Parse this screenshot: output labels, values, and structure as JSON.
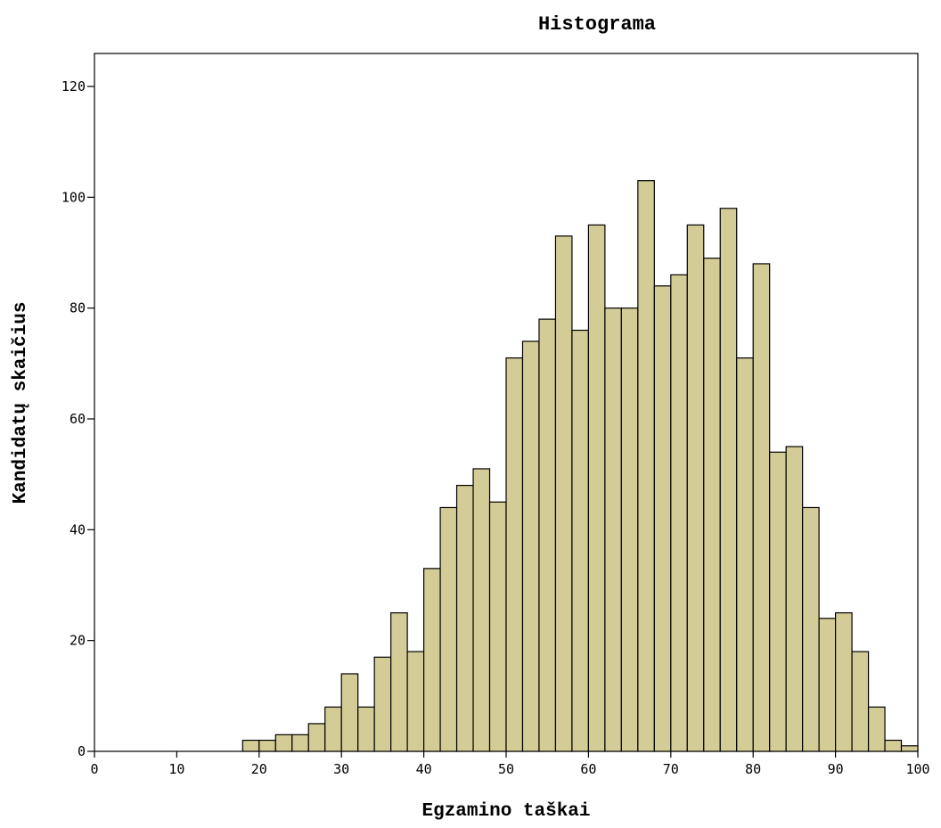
{
  "chart_data": {
    "type": "bar",
    "title": "Histograma",
    "xlabel": "Egzamino taškai",
    "ylabel": "Kandidatų skaičius",
    "xlim": [
      0,
      100
    ],
    "ylim": [
      0,
      120
    ],
    "x_ticks": [
      "0",
      "10",
      "20",
      "30",
      "40",
      "50",
      "60",
      "70",
      "80",
      "90",
      "100"
    ],
    "y_ticks": [
      "0",
      "20",
      "40",
      "60",
      "80",
      "100",
      "120"
    ],
    "bin_width": 2,
    "bin_starts": [
      18,
      20,
      22,
      24,
      26,
      28,
      30,
      32,
      34,
      36,
      38,
      40,
      42,
      44,
      46,
      48,
      50,
      52,
      54,
      56,
      58,
      60,
      62,
      64,
      66,
      68,
      70,
      72,
      74,
      76,
      78,
      80,
      82,
      84,
      86,
      88,
      90,
      92,
      94,
      96,
      98
    ],
    "values": [
      2,
      2,
      3,
      3,
      5,
      8,
      14,
      8,
      17,
      25,
      18,
      33,
      44,
      48,
      51,
      45,
      71,
      74,
      78,
      93,
      76,
      95,
      80,
      80,
      103,
      84,
      86,
      95,
      89,
      98,
      71,
      88,
      54,
      55,
      44,
      24,
      25,
      18,
      8,
      2,
      1
    ],
    "bar_color": "#d4cc96",
    "grid": false
  }
}
